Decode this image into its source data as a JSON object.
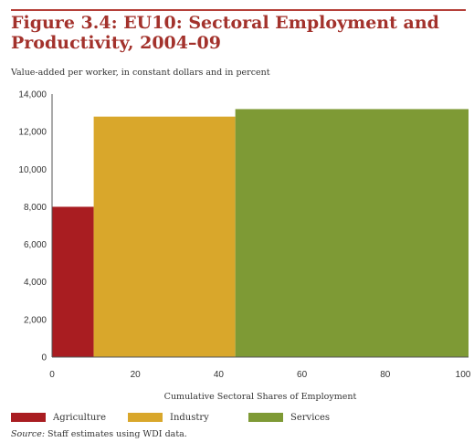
{
  "title_line1": "Figure 3.4: EU10: Sectoral Employment and",
  "title_line2": "Productivity, 2004–09",
  "subtitle": "Value-added per worker, in constant dollars and in percent",
  "source_label": "Source:",
  "source_text": " Staff estimates using WDI data.",
  "chart_data": {
    "type": "bar",
    "title": "Figure 3.4: EU10: Sectoral Employment and Productivity, 2004–09",
    "xlabel": "Cumulative Sectoral Shares of Employment",
    "ylabel": "Value-added per worker, in constant dollars and in percent",
    "xlim": [
      0,
      100
    ],
    "ylim": [
      0,
      14000
    ],
    "x_ticks": [
      "0",
      "20",
      "40",
      "60",
      "80",
      "100"
    ],
    "y_ticks": [
      "0",
      "2,000",
      "4,000",
      "6,000",
      "8,000",
      "10,000",
      "12,000",
      "14,000"
    ],
    "grid": false,
    "legend_position": "bottom",
    "series": [
      {
        "name": "Agriculture",
        "x_start": 0,
        "x_end": 10,
        "value": 8000,
        "color": "#a91d21"
      },
      {
        "name": "Industry",
        "x_start": 10,
        "x_end": 44,
        "value": 12800,
        "color": "#d9a72b"
      },
      {
        "name": "Services",
        "x_start": 44,
        "x_end": 100,
        "value": 13200,
        "color": "#7e9a35"
      }
    ]
  }
}
